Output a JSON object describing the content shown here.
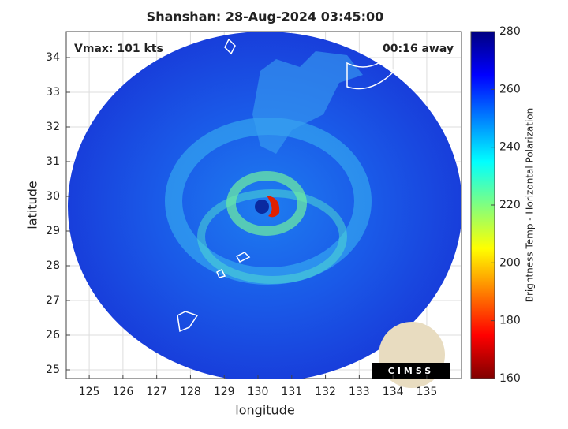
{
  "title": "Shanshan: 28-Aug-2024 03:45:00",
  "annotations": {
    "vmax": "Vmax: 101 kts",
    "time_away": "00:16 away"
  },
  "x_axis": {
    "label": "longitude",
    "lim": [
      124.32,
      136.03
    ],
    "ticks": [
      125,
      126,
      127,
      128,
      129,
      130,
      131,
      132,
      133,
      134,
      135
    ]
  },
  "y_axis": {
    "label": "latitude",
    "lim": [
      24.75,
      34.75
    ],
    "ticks": [
      25,
      26,
      27,
      28,
      29,
      30,
      31,
      32,
      33,
      34
    ]
  },
  "colorbar": {
    "label": "Brightness Temp - Horizontal Polarization",
    "lim": [
      160,
      280
    ],
    "ticks": [
      160,
      180,
      200,
      220,
      240,
      260,
      280
    ],
    "colors": [
      "#800000",
      "#ff0000",
      "#ff8000",
      "#ffff00",
      "#80ff80",
      "#00ffff",
      "#0080ff",
      "#0000ff",
      "#000080"
    ]
  },
  "logo": "CIMSS"
}
